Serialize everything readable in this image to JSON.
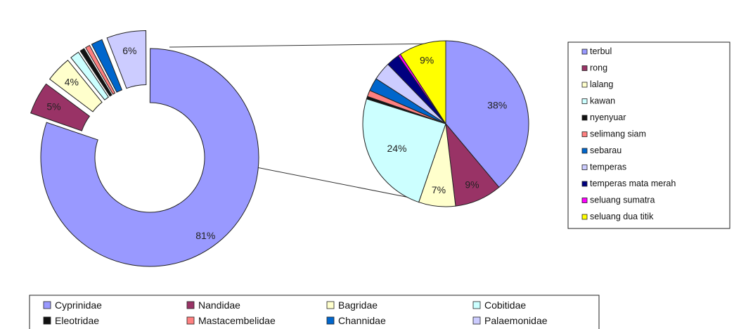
{
  "chart_data": [
    {
      "type": "pie",
      "variant": "donut-exploded",
      "title": "",
      "categories": [
        "Cyprinidae",
        "Nandidae",
        "Bagridae",
        "Cobitidae",
        "Eleotridae",
        "Mastacembelidae",
        "Channidae",
        "Palaemonidae"
      ],
      "values": [
        81,
        5,
        4,
        1.5,
        0.8,
        0.8,
        1.8,
        6
      ],
      "data_labels": [
        "81%",
        "5%",
        "4%",
        "",
        "",
        "",
        "",
        "6%"
      ],
      "colors": [
        "#9999ff",
        "#993366",
        "#ffffcc",
        "#ccffff",
        "#111111",
        "#ff8080",
        "#0066cc",
        "#ccccff"
      ],
      "legend": {
        "position": "bottom",
        "title": ""
      }
    },
    {
      "type": "pie",
      "title": "",
      "detail_of": "Cyprinidae",
      "categories": [
        "terbul",
        "rong",
        "lalang",
        "kawan",
        "nyenyuar",
        "selimang siam",
        "sebarau",
        "temperas",
        "temperas mata merah",
        "seluang sumatra",
        "seluang dua titik"
      ],
      "values": [
        38,
        9,
        7,
        24,
        0.5,
        1.2,
        2.5,
        3.5,
        2.5,
        0.5,
        9
      ],
      "data_labels": [
        "38%",
        "9%",
        "7%",
        "24%",
        "",
        "",
        "",
        "",
        "",
        "",
        "9%"
      ],
      "colors": [
        "#9999ff",
        "#993366",
        "#ffffcc",
        "#ccffff",
        "#111111",
        "#ff8080",
        "#0066cc",
        "#ccccff",
        "#000080",
        "#ff00ff",
        "#ffff00"
      ],
      "legend": {
        "position": "right",
        "title": ""
      }
    }
  ]
}
